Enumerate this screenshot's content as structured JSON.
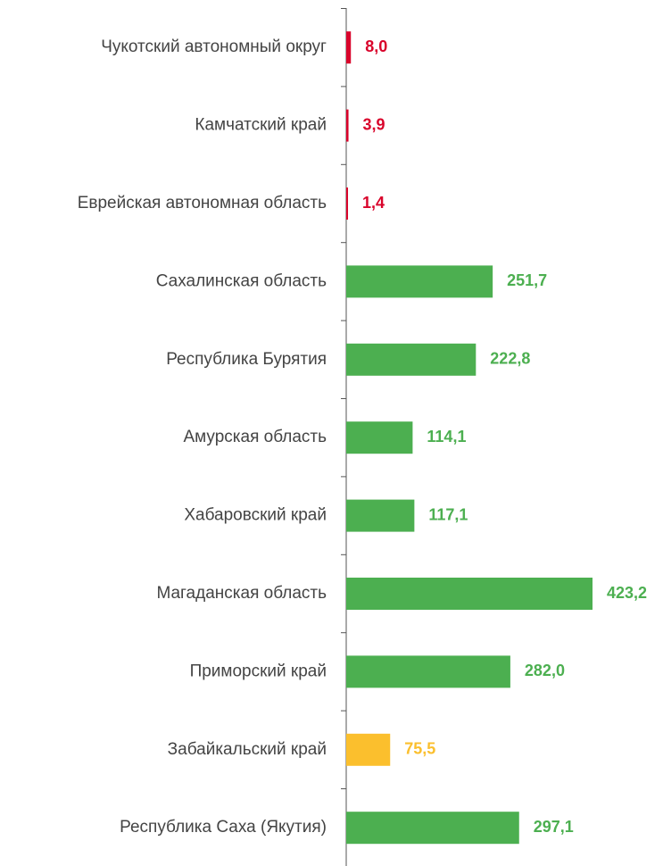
{
  "chart_data": {
    "type": "barh",
    "categories": [
      "Чукотский автономный округ",
      "Камчатский край",
      "Еврейская автономная область",
      "Сахалинская область",
      "Республика Бурятия",
      "Амурская область",
      "Хабаровский край",
      "Магаданская область",
      "Приморский край",
      "Забайкальский край",
      "Республика Саха (Якутия)"
    ],
    "values": [
      8.0,
      3.9,
      1.4,
      251.7,
      222.8,
      114.1,
      117.1,
      423.2,
      282.0,
      75.5,
      297.1
    ],
    "value_labels": [
      "8,0",
      "3,9",
      "1,4",
      "251,7",
      "222,8",
      "114,1",
      "117,1",
      "423,2",
      "282,0",
      "75,5",
      "297,1"
    ],
    "colors": [
      "#d9042b",
      "#d9042b",
      "#d9042b",
      "#4caf50",
      "#4caf50",
      "#4caf50",
      "#4caf50",
      "#4caf50",
      "#4caf50",
      "#fbbf2d",
      "#4caf50"
    ]
  }
}
